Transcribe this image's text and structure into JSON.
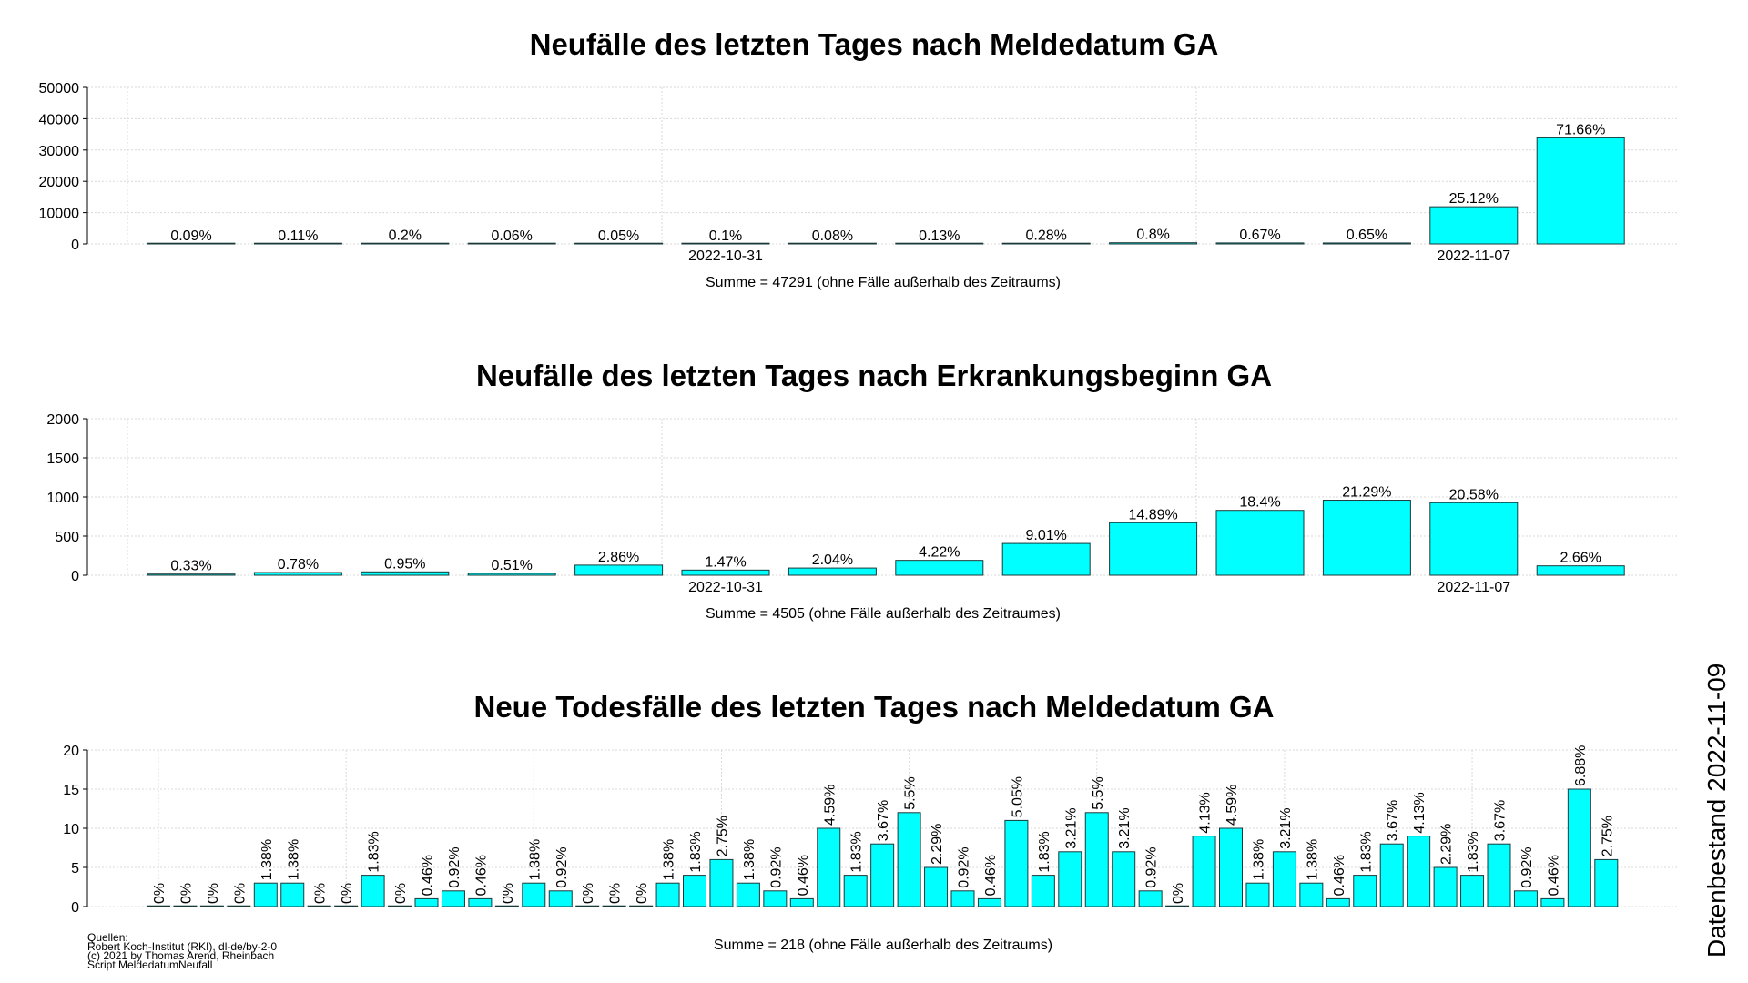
{
  "colors": {
    "bar_fill": "#00ffff",
    "bar_stroke": "#1a3a3a",
    "grid": "#d9d9d9"
  },
  "datenbestand": "Datenbestand 2022-11-09",
  "quellen": [
    "Quellen:",
    "Robert Koch-Institut (RKI), dl-de/by-2-0",
    "(c) 2021 by Thomas Arend, Rheinbach",
    "Script MeldedatumNeufall"
  ],
  "chart_data": [
    {
      "type": "bar",
      "title": "Neufälle des letzten Tages nach Meldedatum GA",
      "summe": "Summe = 47291 (ohne Fälle außerhalb des Zeitraums)",
      "ylim": [
        0,
        50000
      ],
      "yticks": [
        "0",
        "10000",
        "20000",
        "30000",
        "40000",
        "50000"
      ],
      "ytick_values": [
        0,
        10000,
        20000,
        30000,
        40000,
        50000
      ],
      "values": [
        43,
        52,
        95,
        28,
        24,
        47,
        38,
        61,
        132,
        378,
        317,
        307,
        11880,
        33890
      ],
      "labels": [
        "0.09%",
        "0.11%",
        "0.2%",
        "0.06%",
        "0.05%",
        "0.1%",
        "0.08%",
        "0.13%",
        "0.28%",
        "0.8%",
        "0.67%",
        "0.65%",
        "25.12%",
        "71.66%"
      ],
      "xtick_labels": [
        {
          "index": 5,
          "text": "2022-10-31"
        },
        {
          "index": 12,
          "text": "2022-11-07"
        }
      ],
      "label_orientation": "horizontal",
      "grid": true
    },
    {
      "type": "bar",
      "title": "Neufälle des letzten Tages nach Erkrankungsbeginn GA",
      "summe": "Summe = 4505 (ohne Fälle außerhalb des Zeitraumes)",
      "ylim": [
        0,
        2000
      ],
      "yticks": [
        "0",
        "500",
        "1000",
        "1500",
        "2000"
      ],
      "ytick_values": [
        0,
        500,
        1000,
        1500,
        2000
      ],
      "values": [
        15,
        35,
        43,
        23,
        129,
        66,
        92,
        190,
        406,
        671,
        829,
        959,
        927,
        120
      ],
      "labels": [
        "0.33%",
        "0.78%",
        "0.95%",
        "0.51%",
        "2.86%",
        "1.47%",
        "2.04%",
        "4.22%",
        "9.01%",
        "14.89%",
        "18.4%",
        "21.29%",
        "20.58%",
        "2.66%"
      ],
      "xtick_labels": [
        {
          "index": 5,
          "text": "2022-10-31"
        },
        {
          "index": 12,
          "text": "2022-11-07"
        }
      ],
      "label_orientation": "horizontal",
      "grid": true
    },
    {
      "type": "bar",
      "title": "Neue Todesfälle des letzten Tages nach Meldedatum GA",
      "summe": "Summe = 218 (ohne Fälle außerhalb des Zeitraums)",
      "ylim": [
        0,
        20
      ],
      "yticks": [
        "0",
        "5",
        "10",
        "15",
        "20"
      ],
      "ytick_values": [
        0,
        5,
        10,
        15,
        20
      ],
      "values": [
        0,
        0,
        0,
        0,
        3,
        3,
        0,
        0,
        4,
        0,
        1,
        2,
        1,
        0,
        3,
        2,
        0,
        0,
        0,
        3,
        4,
        6,
        3,
        2,
        1,
        10,
        4,
        8,
        12,
        5,
        2,
        1,
        11,
        4,
        7,
        12,
        7,
        2,
        0,
        9,
        10,
        3,
        7,
        3,
        1,
        4,
        8,
        9,
        5,
        4,
        8,
        2,
        1,
        15,
        6
      ],
      "labels": [
        "0%",
        "0%",
        "0%",
        "0%",
        "1.38%",
        "1.38%",
        "0%",
        "0%",
        "1.83%",
        "0%",
        "0.46%",
        "0.92%",
        "0.46%",
        "0%",
        "1.38%",
        "0.92%",
        "0%",
        "0%",
        "0%",
        "1.38%",
        "1.83%",
        "2.75%",
        "1.38%",
        "0.92%",
        "0.46%",
        "4.59%",
        "1.83%",
        "3.67%",
        "5.5%",
        "2.29%",
        "0.92%",
        "0.46%",
        "5.05%",
        "1.83%",
        "3.21%",
        "5.5%",
        "3.21%",
        "0.92%",
        "0%",
        "4.13%",
        "4.59%",
        "1.38%",
        "3.21%",
        "1.38%",
        "0.46%",
        "1.83%",
        "3.67%",
        "4.13%",
        "2.29%",
        "1.83%",
        "3.67%",
        "0.92%",
        "0.46%",
        "6.88%",
        "2.75%"
      ],
      "xtick_labels": [],
      "label_orientation": "vertical",
      "grid": true
    }
  ]
}
